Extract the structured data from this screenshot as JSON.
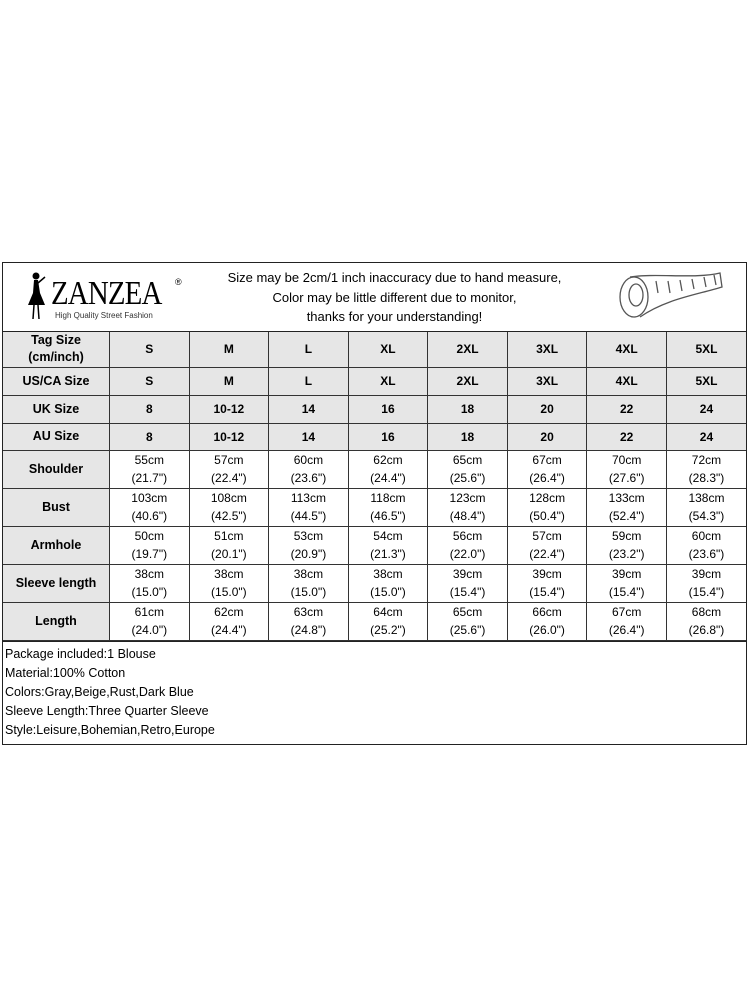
{
  "header": {
    "brand": "ZANZEA",
    "brand_mark": "®",
    "tagline": "High Quality Street Fashion",
    "notice": [
      "Size may be 2cm/1 inch inaccuracy due to hand measure,",
      "Color may be little different due to monitor,",
      "thanks for your understanding!"
    ],
    "icon": "measuring-tape-icon"
  },
  "size_rows": [
    {
      "label": "Tag Size (cm/inch)",
      "values": [
        "S",
        "M",
        "L",
        "XL",
        "2XL",
        "3XL",
        "4XL",
        "5XL"
      ]
    },
    {
      "label": "US/CA Size",
      "values": [
        "S",
        "M",
        "L",
        "XL",
        "2XL",
        "3XL",
        "4XL",
        "5XL"
      ]
    },
    {
      "label": "UK Size",
      "values": [
        "8",
        "10-12",
        "14",
        "16",
        "18",
        "20",
        "22",
        "24"
      ]
    },
    {
      "label": "AU Size",
      "values": [
        "8",
        "10-12",
        "14",
        "16",
        "18",
        "20",
        "22",
        "24"
      ]
    }
  ],
  "measure_rows": [
    {
      "label": "Shoulder",
      "cm": [
        "55cm",
        "57cm",
        "60cm",
        "62cm",
        "65cm",
        "67cm",
        "70cm",
        "72cm"
      ],
      "inch": [
        "(21.7\")",
        "(22.4\")",
        "(23.6\")",
        "(24.4\")",
        "(25.6\")",
        "(26.4\")",
        "(27.6\")",
        "(28.3\")"
      ]
    },
    {
      "label": "Bust",
      "cm": [
        "103cm",
        "108cm",
        "113cm",
        "118cm",
        "123cm",
        "128cm",
        "133cm",
        "138cm"
      ],
      "inch": [
        "(40.6\")",
        "(42.5\")",
        "(44.5\")",
        "(46.5\")",
        "(48.4\")",
        "(50.4\")",
        "(52.4\")",
        "(54.3\")"
      ]
    },
    {
      "label": "Armhole",
      "cm": [
        "50cm",
        "51cm",
        "53cm",
        "54cm",
        "56cm",
        "57cm",
        "59cm",
        "60cm"
      ],
      "inch": [
        "(19.7\")",
        "(20.1\")",
        "(20.9\")",
        "(21.3\")",
        "(22.0\")",
        "(22.4\")",
        "(23.2\")",
        "(23.6\")"
      ]
    },
    {
      "label": "Sleeve length",
      "cm": [
        "38cm",
        "38cm",
        "38cm",
        "38cm",
        "39cm",
        "39cm",
        "39cm",
        "39cm"
      ],
      "inch": [
        "(15.0\")",
        "(15.0\")",
        "(15.0\")",
        "(15.0\")",
        "(15.4\")",
        "(15.4\")",
        "(15.4\")",
        "(15.4\")"
      ]
    },
    {
      "label": "Length",
      "cm": [
        "61cm",
        "62cm",
        "63cm",
        "64cm",
        "65cm",
        "66cm",
        "67cm",
        "68cm"
      ],
      "inch": [
        "(24.0\")",
        "(24.4\")",
        "(24.8\")",
        "(25.2\")",
        "(25.6\")",
        "(26.0\")",
        "(26.4\")",
        "(26.8\")"
      ]
    }
  ],
  "info": [
    "Package included:1 Blouse",
    "Material:100% Cotton",
    "Colors:Gray,Beige,Rust,Dark Blue",
    "Sleeve Length:Three Quarter Sleeve",
    "Style:Leisure,Bohemian,Retro,Europe"
  ]
}
